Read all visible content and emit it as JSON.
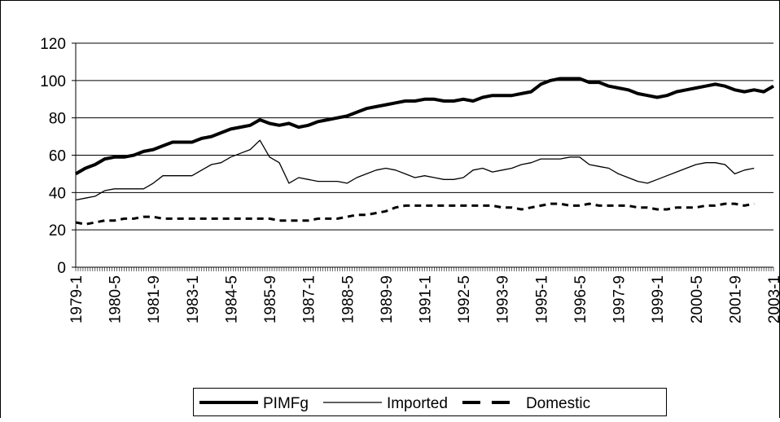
{
  "chart_data": {
    "type": "line",
    "categories": [
      "1979-1",
      null,
      null,
      null,
      "1980-5",
      null,
      null,
      null,
      "1981-9",
      null,
      null,
      null,
      "1983-1",
      null,
      null,
      null,
      "1984-5",
      null,
      null,
      null,
      "1985-9",
      null,
      null,
      null,
      "1987-1",
      null,
      null,
      null,
      "1988-5",
      null,
      null,
      null,
      "1989-9",
      null,
      null,
      null,
      "1991-1",
      null,
      null,
      null,
      "1992-5",
      null,
      null,
      null,
      "1993-9",
      null,
      null,
      null,
      "1995-1",
      null,
      null,
      null,
      "1996-5",
      null,
      null,
      null,
      "1997-9",
      null,
      null,
      null,
      "1999-1",
      null,
      null,
      null,
      "2000-5",
      null,
      null,
      null,
      "2001-9",
      null,
      null,
      null,
      "2003-1"
    ],
    "series": [
      {
        "name": "PIMFg",
        "color": "#000000",
        "style": "thick",
        "values": [
          50,
          53,
          55,
          58,
          59,
          59,
          60,
          62,
          63,
          65,
          67,
          67,
          67,
          69,
          70,
          72,
          74,
          75,
          76,
          79,
          77,
          76,
          77,
          75,
          76,
          78,
          79,
          80,
          81,
          83,
          85,
          86,
          87,
          88,
          89,
          89,
          90,
          90,
          89,
          89,
          90,
          89,
          91,
          92,
          92,
          92,
          93,
          94,
          98,
          100,
          101,
          101,
          101,
          99,
          99,
          97,
          96,
          95,
          93,
          92,
          91,
          92,
          94,
          95,
          96,
          97,
          98,
          97,
          95,
          94,
          95,
          94,
          97
        ]
      },
      {
        "name": "Imported",
        "color": "#000000",
        "style": "thin",
        "values": [
          36,
          37,
          38,
          41,
          42,
          42,
          42,
          42,
          45,
          49,
          49,
          49,
          49,
          52,
          55,
          56,
          59,
          61,
          63,
          68,
          59,
          56,
          45,
          48,
          47,
          46,
          46,
          46,
          45,
          48,
          50,
          52,
          53,
          52,
          50,
          48,
          49,
          48,
          47,
          47,
          48,
          52,
          53,
          51,
          52,
          53,
          55,
          56,
          58,
          58,
          58,
          59,
          59,
          55,
          54,
          53,
          50,
          48,
          46,
          45,
          47,
          49,
          51,
          53,
          55,
          56,
          56,
          55,
          50,
          52,
          53,
          null,
          null
        ]
      },
      {
        "name": "Domestic",
        "color": "#000000",
        "style": "dashed",
        "values": [
          24,
          23,
          24,
          25,
          25,
          26,
          26,
          27,
          27,
          26,
          26,
          26,
          26,
          26,
          26,
          26,
          26,
          26,
          26,
          26,
          26,
          25,
          25,
          25,
          25,
          26,
          26,
          26,
          27,
          28,
          28,
          29,
          30,
          32,
          33,
          33,
          33,
          33,
          33,
          33,
          33,
          33,
          33,
          33,
          32,
          32,
          31,
          32,
          33,
          34,
          34,
          33,
          33,
          34,
          33,
          33,
          33,
          33,
          32,
          32,
          31,
          31,
          32,
          32,
          32,
          33,
          33,
          34,
          34,
          33,
          34,
          null,
          null
        ]
      }
    ],
    "ylim": [
      0,
      120
    ],
    "yticks": [
      0,
      20,
      40,
      60,
      80,
      100,
      120
    ],
    "grid": true,
    "legend": "bottom"
  }
}
